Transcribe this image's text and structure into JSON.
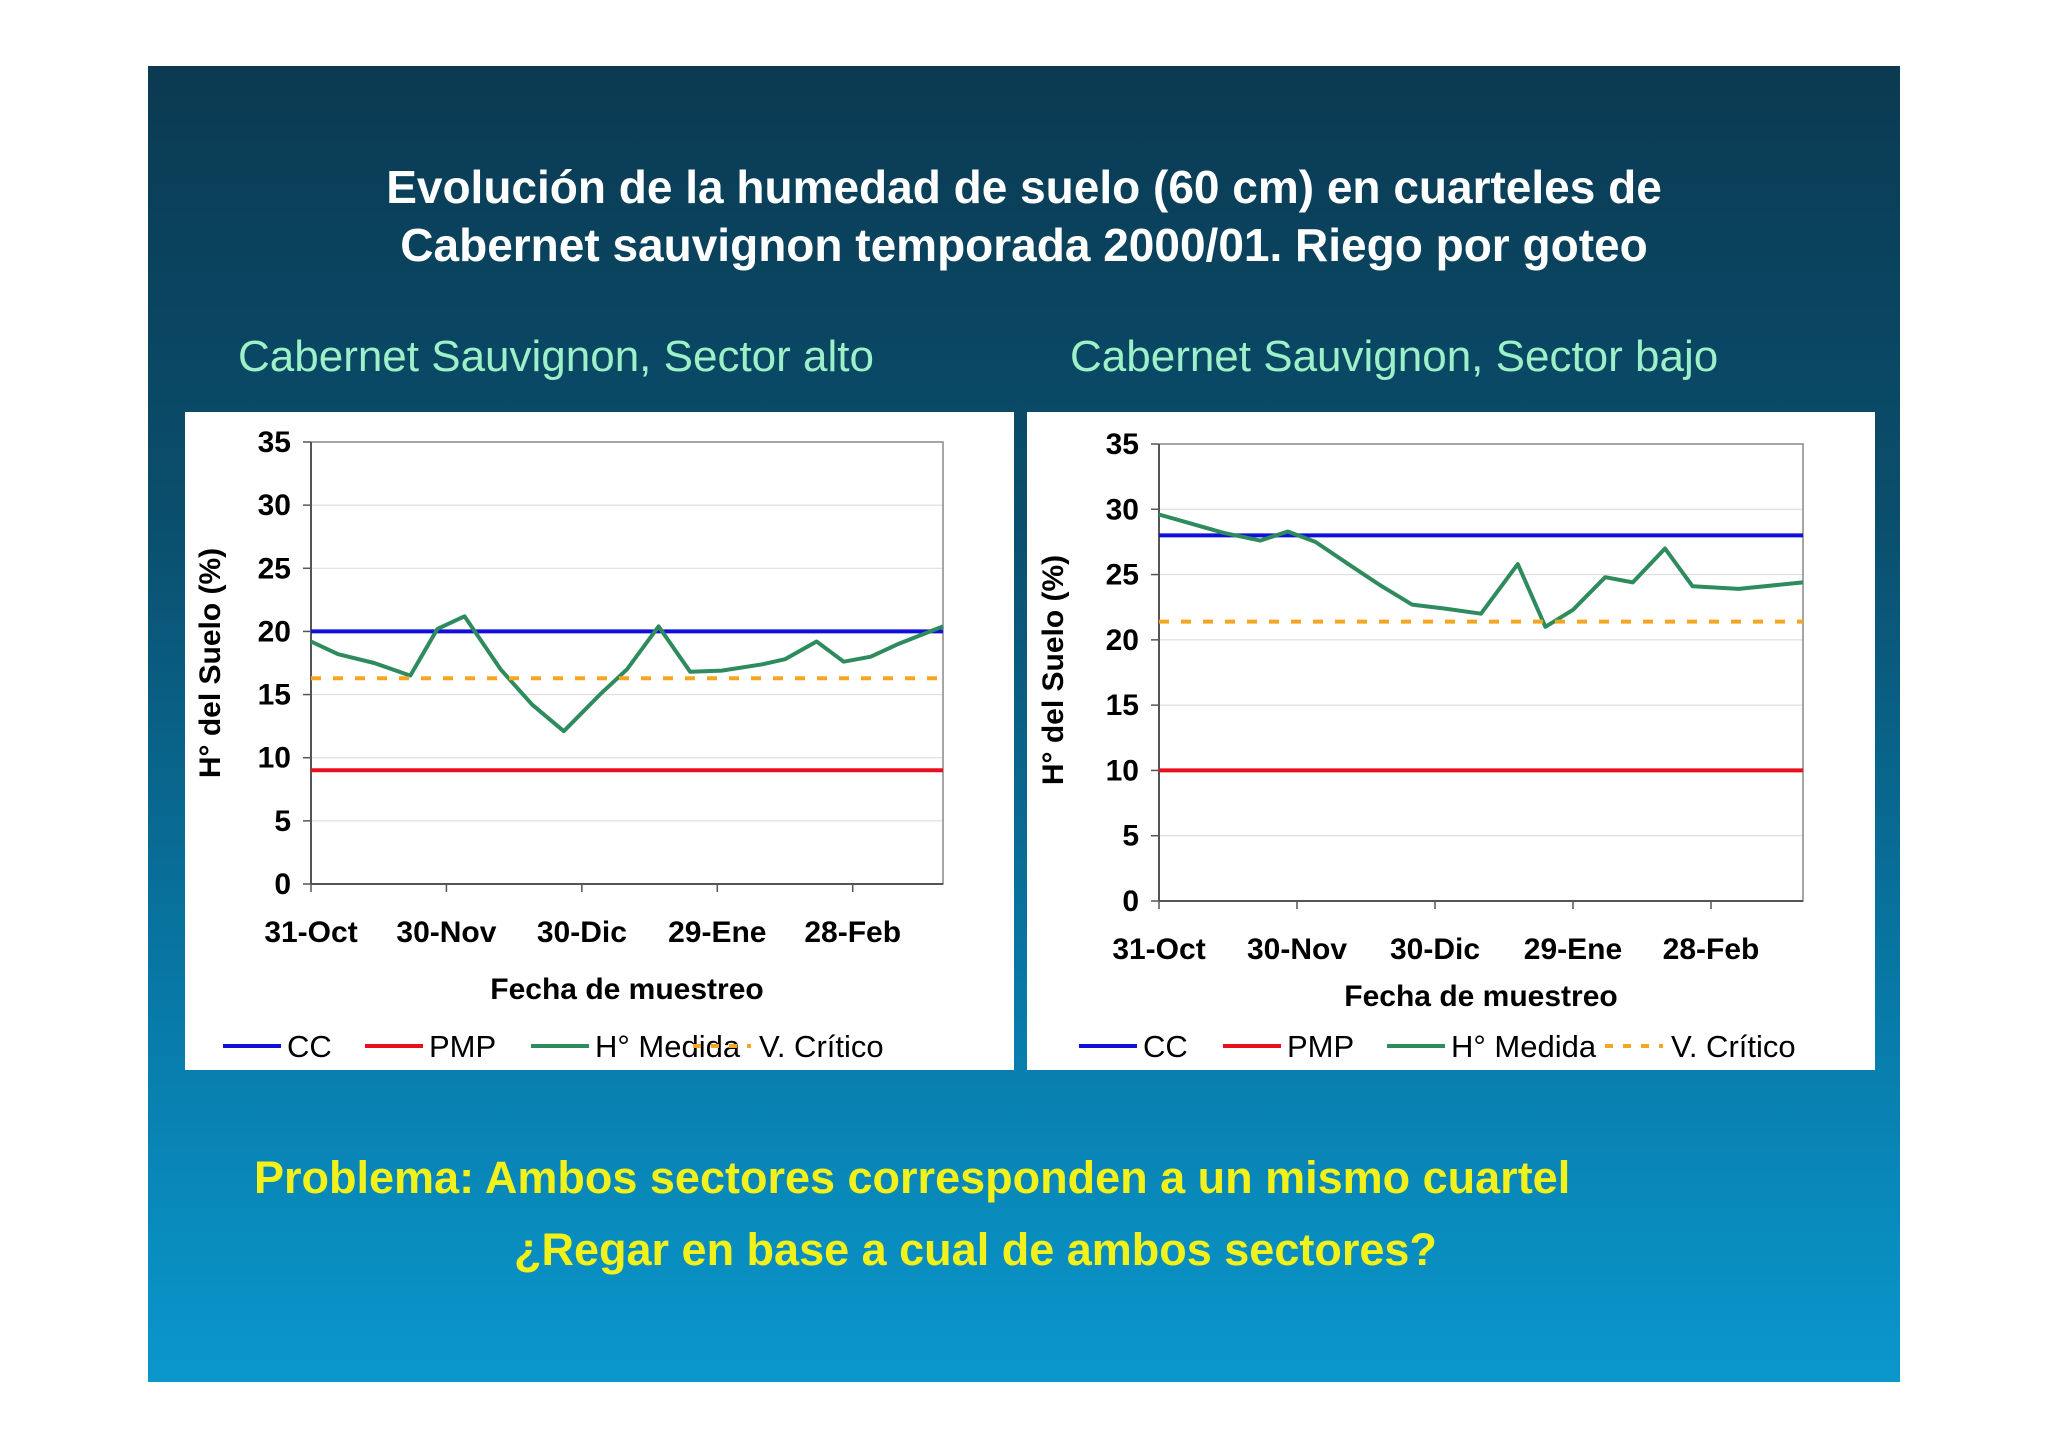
{
  "slide": {
    "title_line1": "Evolución de la humedad de suelo (60 cm) en cuarteles de",
    "title_line2": "Cabernet sauvignon temporada 2000/01. Riego por goteo",
    "problem_line1": "Problema: Ambos sectores corresponden a un mismo cuartel",
    "problem_line2": "¿Regar en base a cual de ambos sectores?"
  },
  "colors": {
    "cc": "#1010d8",
    "pmp": "#e8101e",
    "measured": "#2e8b5e",
    "critical": "#f5a623"
  },
  "chart_data": [
    {
      "type": "line",
      "title": "Cabernet Sauvignon, Sector alto",
      "xlabel": "Fecha de muestreo",
      "ylabel": "H° del Suelo (%)",
      "ylim": [
        0,
        35
      ],
      "yticks": [
        "0",
        "5",
        "10",
        "15",
        "20",
        "25",
        "30",
        "35"
      ],
      "xlim": [
        0,
        140
      ],
      "xticks": [
        {
          "value": 0,
          "label": "31-Oct"
        },
        {
          "value": 30,
          "label": "30-Nov"
        },
        {
          "value": 60,
          "label": "30-Dic"
        },
        {
          "value": 90,
          "label": "29-Ene"
        },
        {
          "value": 120,
          "label": "28-Feb"
        }
      ],
      "grid": true,
      "legend": "bottom",
      "series": [
        {
          "name": "CC",
          "style": "solid",
          "color": "#1010d8",
          "x": [
            0,
            140
          ],
          "y": [
            20,
            20
          ]
        },
        {
          "name": "PMP",
          "style": "solid",
          "color": "#e8101e",
          "x": [
            0,
            140
          ],
          "y": [
            9,
            9
          ]
        },
        {
          "name": "H° Medida",
          "style": "solid",
          "color": "#2e8b5e",
          "x": [
            0,
            6,
            14,
            22,
            28,
            34,
            42,
            49,
            56,
            64,
            70,
            77,
            84,
            91,
            100,
            105,
            112,
            118,
            124,
            130,
            140
          ],
          "y": [
            19.2,
            18.2,
            17.5,
            16.5,
            20.2,
            21.2,
            17.0,
            14.2,
            12.1,
            15.0,
            17.0,
            20.4,
            16.8,
            16.9,
            17.4,
            17.8,
            19.2,
            17.6,
            18.0,
            19.0,
            20.4
          ]
        },
        {
          "name": "V. Crítico",
          "style": "dashed",
          "color": "#f5a623",
          "x": [
            0,
            140
          ],
          "y": [
            16.3,
            16.3
          ]
        }
      ]
    },
    {
      "type": "line",
      "title": "Cabernet Sauvignon, Sector bajo",
      "xlabel": "Fecha de muestreo",
      "ylabel": "H° del Suelo (%)",
      "ylim": [
        0,
        35
      ],
      "yticks": [
        "0",
        "5",
        "10",
        "15",
        "20",
        "25",
        "30",
        "35"
      ],
      "xlim": [
        0,
        140
      ],
      "xticks": [
        {
          "value": 0,
          "label": "31-Oct"
        },
        {
          "value": 30,
          "label": "30-Nov"
        },
        {
          "value": 60,
          "label": "30-Dic"
        },
        {
          "value": 90,
          "label": "29-Ene"
        },
        {
          "value": 120,
          "label": "28-Feb"
        }
      ],
      "grid": true,
      "legend": "bottom",
      "series": [
        {
          "name": "CC",
          "style": "solid",
          "color": "#1010d8",
          "x": [
            0,
            140
          ],
          "y": [
            28,
            28
          ]
        },
        {
          "name": "PMP",
          "style": "solid",
          "color": "#e8101e",
          "x": [
            0,
            140
          ],
          "y": [
            10,
            10
          ]
        },
        {
          "name": "H° Medida",
          "style": "solid",
          "color": "#2e8b5e",
          "x": [
            0,
            6,
            14,
            22,
            28,
            34,
            42,
            48,
            55,
            62,
            70,
            78,
            84,
            90,
            97,
            103,
            110,
            116,
            126,
            140
          ],
          "y": [
            29.6,
            29.0,
            28.2,
            27.6,
            28.3,
            27.5,
            25.6,
            24.2,
            22.7,
            22.4,
            22.0,
            25.8,
            21.0,
            22.3,
            24.8,
            24.4,
            27.0,
            24.1,
            23.9,
            24.4
          ]
        },
        {
          "name": "V. Crítico",
          "style": "dashed",
          "color": "#f5a623",
          "x": [
            0,
            140
          ],
          "y": [
            21.4,
            21.4
          ]
        }
      ]
    }
  ]
}
